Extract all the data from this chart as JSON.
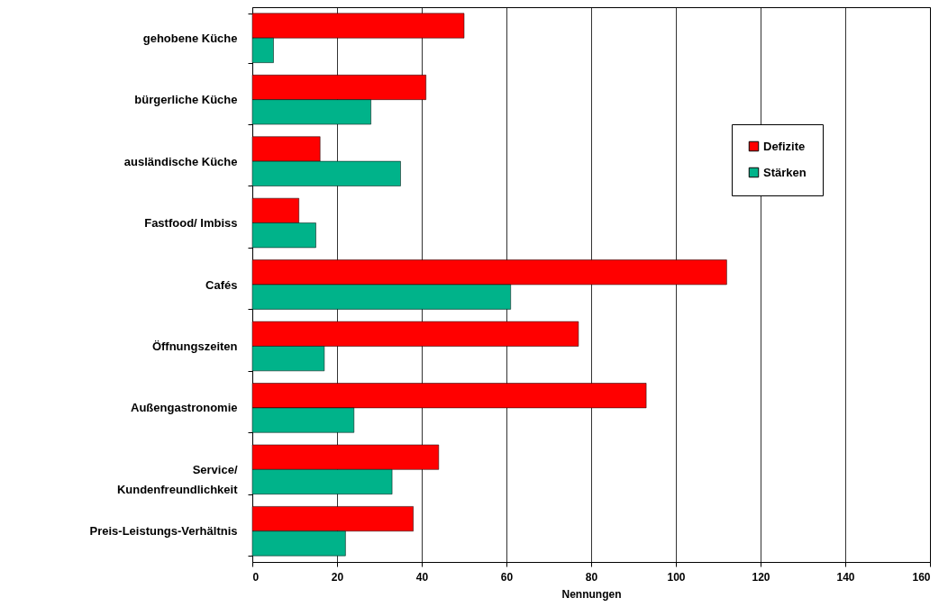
{
  "chart_data": {
    "type": "bar",
    "orientation": "horizontal",
    "categories": [
      "gehobene Küche",
      "bürgerliche Küche",
      "ausländische Küche",
      "Fastfood/ Imbiss",
      "Cafés",
      "Öffnungszeiten",
      "Außengastronomie",
      "Service/ Kundenfreundlichkeit",
      "Preis-Leistungs-Verhältnis"
    ],
    "series": [
      {
        "name": "Defizite",
        "color": "#ff0000",
        "values": [
          50,
          41,
          16,
          11,
          112,
          77,
          93,
          44,
          38
        ]
      },
      {
        "name": "Stärken",
        "color": "#00b38a",
        "values": [
          5,
          28,
          35,
          15,
          61,
          17,
          24,
          33,
          22
        ]
      }
    ],
    "xlabel": "Nennungen",
    "xlim": [
      0,
      160
    ],
    "xticks": [
      0,
      20,
      40,
      60,
      80,
      100,
      120,
      140,
      160
    ],
    "grid": "x",
    "legend": "right"
  }
}
